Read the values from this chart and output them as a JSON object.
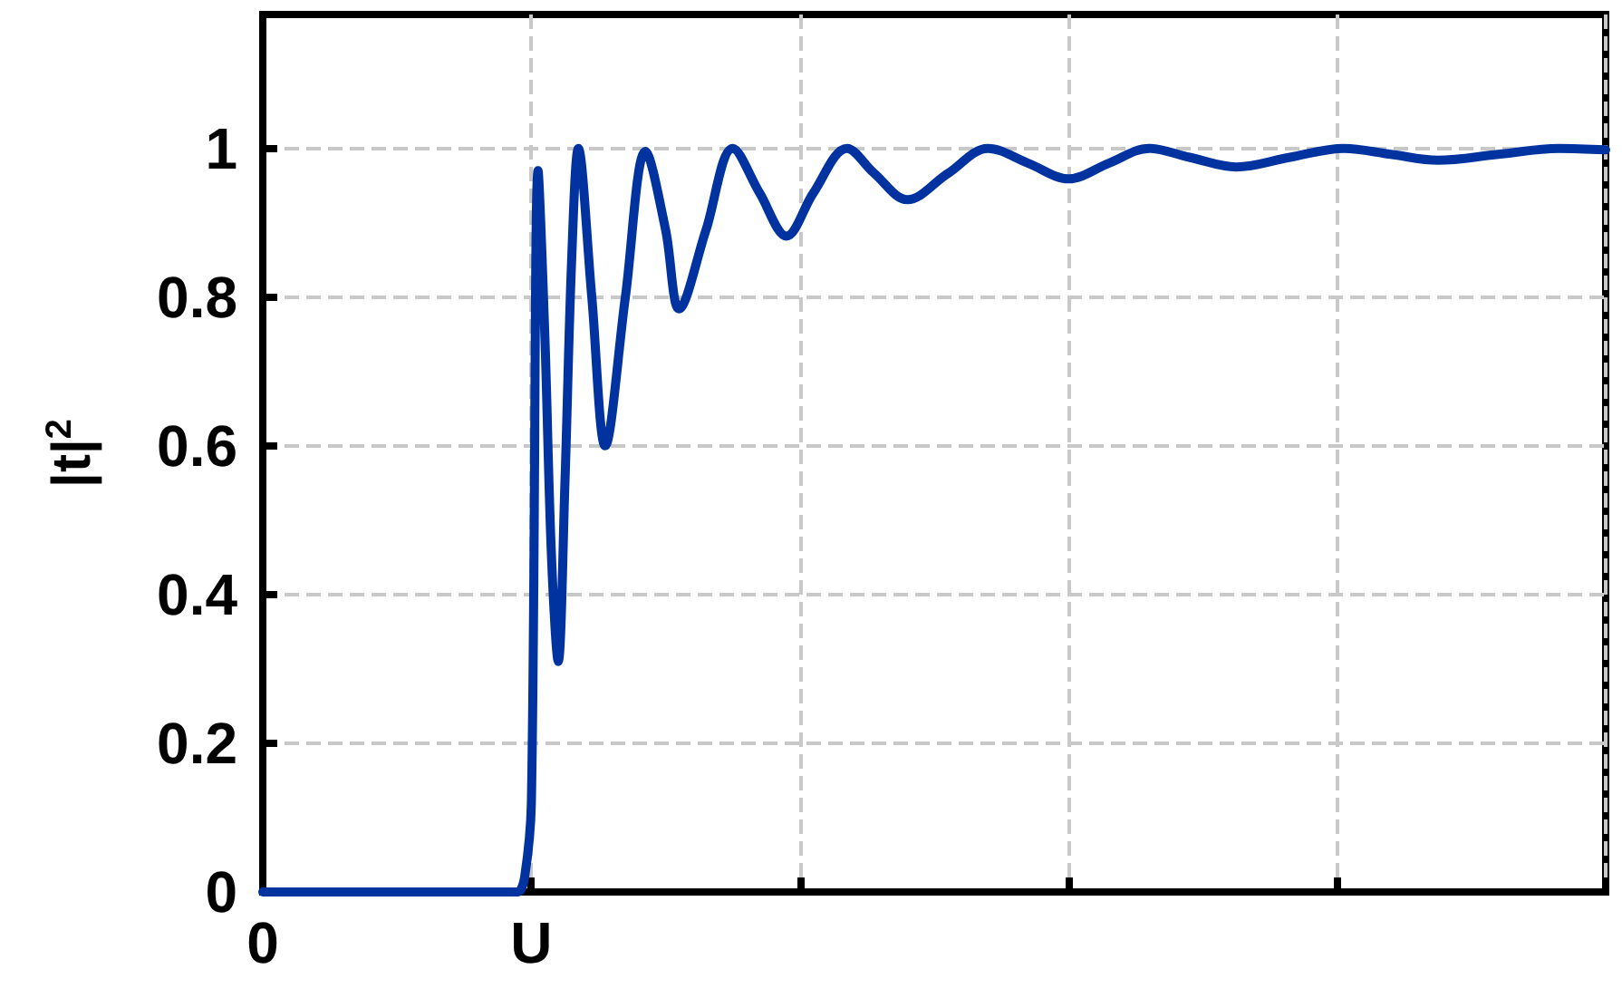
{
  "chart_data": {
    "type": "line",
    "ylabel": "|t|$^{2}$",
    "categories": [
      "0",
      null,
      null,
      null,
      null,
      null,
      null,
      null,
      null,
      null,
      null,
      null,
      null,
      null,
      null,
      null,
      null,
      null,
      null,
      null,
      null,
      null,
      null,
      null,
      null,
      null,
      null,
      null,
      null,
      null,
      null,
      null,
      null,
      null,
      null,
      null,
      null,
      null,
      null,
      null,
      "U",
      null,
      null,
      null,
      null,
      null,
      null,
      null,
      null,
      null,
      null,
      null,
      null,
      null,
      null,
      null,
      null,
      null,
      null,
      null,
      null,
      null,
      null,
      null,
      null,
      null,
      null,
      null,
      null,
      null,
      null,
      null,
      null,
      null,
      null,
      null,
      null,
      null,
      null,
      null,
      null,
      null,
      null,
      null,
      null,
      null,
      null,
      null,
      null,
      null,
      null,
      null,
      null,
      null,
      null,
      null,
      null,
      null,
      null,
      null,
      null,
      null,
      null,
      null,
      null,
      null,
      null,
      null,
      null,
      null,
      null,
      null,
      null,
      null,
      null,
      null,
      null,
      null,
      null,
      null,
      null,
      null,
      null,
      null,
      null,
      null,
      null,
      null,
      null,
      null,
      null,
      null,
      null,
      null,
      null,
      null,
      null,
      null,
      null,
      null,
      null,
      null,
      null,
      null,
      null,
      null,
      null,
      null,
      null,
      null,
      null,
      null,
      null,
      null,
      null,
      null,
      null,
      null,
      null,
      null,
      null,
      null,
      null,
      null,
      null,
      null,
      null,
      null,
      null,
      null,
      null,
      null,
      null,
      null,
      null,
      null,
      null,
      null,
      null,
      null,
      null,
      null,
      null,
      null,
      null,
      null,
      null,
      null,
      null,
      null,
      null,
      null,
      null,
      null,
      null,
      null,
      null,
      null,
      null,
      null,
      null
    ],
    "ylim": [
      0,
      1.18
    ],
    "yticks": [
      0,
      0.2,
      0.4,
      0.6,
      0.8,
      1
    ],
    "grid": true,
    "line_style": "solid",
    "marker": "none",
    "series": [
      {
        "color": "#0033a0",
        "values": [
          0,
          0,
          0,
          0,
          0,
          0,
          0,
          0,
          0,
          0,
          0,
          0,
          0,
          0,
          0,
          0,
          0,
          0,
          0,
          0,
          0,
          0,
          0,
          0,
          0,
          0,
          0,
          0,
          0,
          0,
          0,
          0,
          0,
          0,
          0,
          0,
          0,
          0,
          0,
          0.02,
          0.12,
          0.97,
          0.75,
          0.45,
          0.31,
          0.55,
          0.85,
          1.0,
          null,
          0.8,
          null,
          0.6,
          null,
          null,
          0.8,
          null,
          null,
          0.996,
          null,
          null,
          0.89,
          null,
          0.784,
          null,
          null,
          null,
          0.89,
          null,
          null,
          null,
          1.0,
          null,
          null,
          null,
          0.94,
          null,
          null,
          null,
          0.882,
          null,
          null,
          null,
          0.94,
          null,
          null,
          null,
          null,
          1.0,
          null,
          null,
          null,
          0.967,
          null,
          null,
          null,
          null,
          0.931,
          null,
          null,
          null,
          null,
          null,
          0.966,
          null,
          null,
          null,
          null,
          null,
          1.0,
          null,
          null,
          null,
          null,
          null,
          0.98,
          null,
          null,
          null,
          null,
          null,
          0.959,
          null,
          null,
          null,
          null,
          null,
          0.98,
          null,
          null,
          null,
          null,
          null,
          1.0,
          null,
          null,
          null,
          null,
          null,
          0.988,
          null,
          null,
          null,
          null,
          null,
          null,
          0.975,
          null,
          null,
          null,
          null,
          null,
          null,
          null,
          0.988,
          null,
          null,
          null,
          null,
          null,
          null,
          null,
          1.0,
          null,
          null,
          null,
          null,
          null,
          null,
          0.992,
          null,
          null,
          null,
          null,
          null,
          null,
          0.984,
          null,
          null,
          null,
          null,
          null,
          null,
          null,
          null,
          0.992,
          null,
          null,
          null,
          null,
          null,
          null,
          null,
          null,
          1.0,
          null,
          null,
          null,
          null,
          null,
          null,
          0.998
        ]
      }
    ]
  }
}
